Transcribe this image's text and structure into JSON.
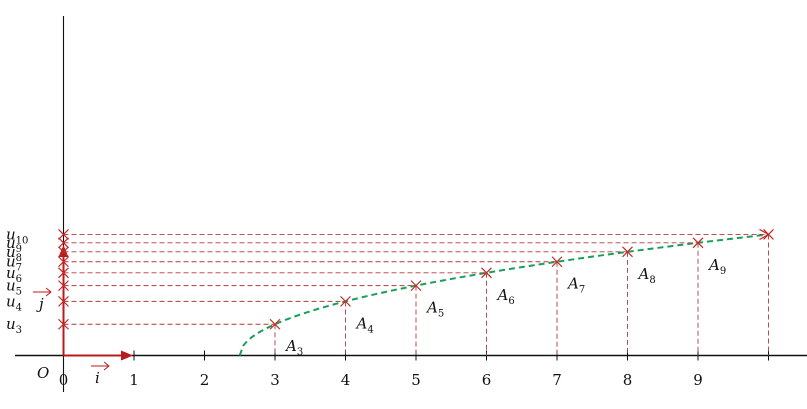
{
  "diagram": {
    "origin_label": "O",
    "vector_i_label": "i",
    "vector_j_label": "j",
    "x_tick_labels": [
      "0",
      "1",
      "2",
      "3",
      "4",
      "5",
      "6",
      "7",
      "8",
      "9"
    ],
    "points": [
      {
        "index": 3,
        "label": "A",
        "subscript": "3",
        "u_label": "u",
        "u_subscript": "3"
      },
      {
        "index": 4,
        "label": "A",
        "subscript": "4",
        "u_label": "u",
        "u_subscript": "4"
      },
      {
        "index": 5,
        "label": "A",
        "subscript": "5",
        "u_label": "u",
        "u_subscript": "5"
      },
      {
        "index": 6,
        "label": "A",
        "subscript": "6",
        "u_label": "u",
        "u_subscript": "6"
      },
      {
        "index": 7,
        "label": "A",
        "subscript": "7",
        "u_label": "u",
        "u_subscript": "7"
      },
      {
        "index": 8,
        "label": "A",
        "subscript": "8",
        "u_label": "u",
        "u_subscript": "8"
      },
      {
        "index": 9,
        "label": "A",
        "subscript": "9",
        "u_label": "u",
        "u_subscript": "9"
      },
      {
        "index": 10,
        "label": "",
        "subscript": "",
        "u_label": "u",
        "u_subscript": "10"
      }
    ],
    "colors": {
      "axis": "#111111",
      "vector": "#b71c1c",
      "dashed": "#b33a3a",
      "curve": "#16a05a",
      "marker": "#c62828"
    }
  }
}
